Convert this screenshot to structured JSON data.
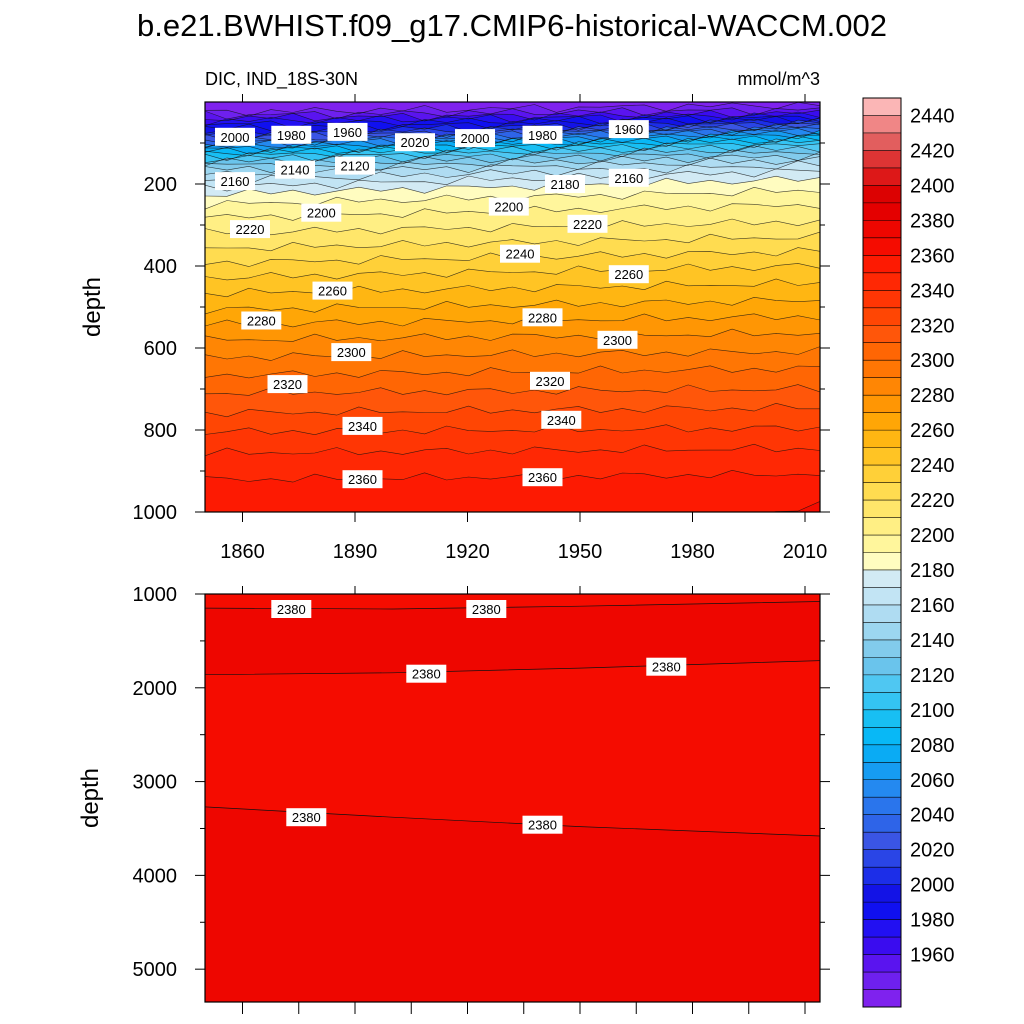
{
  "title": "b.e21.BWHIST.f09_g17.CMIP6-historical-WACCM.002",
  "chart_data": [
    {
      "type": "heatmap",
      "panel": "upper",
      "subtitle_left": "DIC, IND_18S-30N",
      "subtitle_right": "mmol/m^3",
      "ylabel": "depth",
      "xlim": [
        1850,
        2014
      ],
      "ylim": [
        0,
        1000
      ],
      "y_inverted": true,
      "x_ticks": [
        {
          "value": 1860,
          "label": "1860"
        },
        {
          "value": 1890,
          "label": "1890"
        },
        {
          "value": 1920,
          "label": "1920"
        },
        {
          "value": 1950,
          "label": "1950"
        },
        {
          "value": 1980,
          "label": "1980"
        },
        {
          "value": 2010,
          "label": "2010"
        }
      ],
      "y_ticks": [
        {
          "value": 200,
          "label": "200"
        },
        {
          "value": 400,
          "label": "400"
        },
        {
          "value": 600,
          "label": "600"
        },
        {
          "value": 800,
          "label": "800"
        },
        {
          "value": 1000,
          "label": "1000"
        }
      ],
      "profile_start": [
        [
          0,
          1945
        ],
        [
          25,
          1950
        ],
        [
          50,
          1985
        ],
        [
          75,
          2010
        ],
        [
          100,
          2050
        ],
        [
          125,
          2100
        ],
        [
          150,
          2135
        ],
        [
          175,
          2160
        ],
        [
          200,
          2175
        ],
        [
          225,
          2190
        ],
        [
          250,
          2200
        ],
        [
          275,
          2208
        ],
        [
          300,
          2215
        ],
        [
          350,
          2228
        ],
        [
          400,
          2242
        ],
        [
          450,
          2256
        ],
        [
          500,
          2268
        ],
        [
          550,
          2282
        ],
        [
          600,
          2295
        ],
        [
          650,
          2306
        ],
        [
          700,
          2318
        ],
        [
          750,
          2328
        ],
        [
          800,
          2339
        ],
        [
          850,
          2349
        ],
        [
          900,
          2357
        ],
        [
          950,
          2364
        ],
        [
          1000,
          2368
        ]
      ],
      "profile_end": [
        [
          0,
          1945
        ],
        [
          25,
          1965
        ],
        [
          50,
          2020
        ],
        [
          75,
          2075
        ],
        [
          100,
          2115
        ],
        [
          125,
          2145
        ],
        [
          150,
          2168
        ],
        [
          175,
          2185
        ],
        [
          200,
          2195
        ],
        [
          225,
          2203
        ],
        [
          250,
          2210
        ],
        [
          300,
          2222
        ],
        [
          350,
          2236
        ],
        [
          400,
          2250
        ],
        [
          450,
          2262
        ],
        [
          500,
          2274
        ],
        [
          550,
          2287
        ],
        [
          600,
          2298
        ],
        [
          650,
          2310
        ],
        [
          700,
          2320
        ],
        [
          750,
          2331
        ],
        [
          800,
          2341
        ],
        [
          850,
          2351
        ],
        [
          900,
          2359
        ],
        [
          950,
          2366
        ],
        [
          1000,
          2372
        ]
      ],
      "contour_labels": [
        {
          "text": "2000",
          "x": 1858,
          "y": 85
        },
        {
          "text": "1980",
          "x": 1873,
          "y": 80
        },
        {
          "text": "1960",
          "x": 1888,
          "y": 73
        },
        {
          "text": "2020",
          "x": 1906,
          "y": 98
        },
        {
          "text": "2000",
          "x": 1922,
          "y": 88
        },
        {
          "text": "1980",
          "x": 1940,
          "y": 80
        },
        {
          "text": "1960",
          "x": 1963,
          "y": 66
        },
        {
          "text": "2140",
          "x": 1874,
          "y": 165
        },
        {
          "text": "2120",
          "x": 1890,
          "y": 155
        },
        {
          "text": "2160",
          "x": 1858,
          "y": 193
        },
        {
          "text": "2180",
          "x": 1946,
          "y": 200
        },
        {
          "text": "2160",
          "x": 1963,
          "y": 185
        },
        {
          "text": "2200",
          "x": 1881,
          "y": 270
        },
        {
          "text": "2200",
          "x": 1931,
          "y": 255
        },
        {
          "text": "2220",
          "x": 1862,
          "y": 310
        },
        {
          "text": "2220",
          "x": 1952,
          "y": 297
        },
        {
          "text": "2240",
          "x": 1934,
          "y": 370
        },
        {
          "text": "2260",
          "x": 1884,
          "y": 460
        },
        {
          "text": "2260",
          "x": 1963,
          "y": 420
        },
        {
          "text": "2280",
          "x": 1865,
          "y": 533
        },
        {
          "text": "2280",
          "x": 1940,
          "y": 525
        },
        {
          "text": "2300",
          "x": 1889,
          "y": 610
        },
        {
          "text": "2300",
          "x": 1960,
          "y": 580
        },
        {
          "text": "2320",
          "x": 1872,
          "y": 688
        },
        {
          "text": "2320",
          "x": 1942,
          "y": 680
        },
        {
          "text": "2340",
          "x": 1892,
          "y": 790
        },
        {
          "text": "2340",
          "x": 1945,
          "y": 775
        },
        {
          "text": "2360",
          "x": 1892,
          "y": 920
        },
        {
          "text": "2360",
          "x": 1940,
          "y": 915
        }
      ]
    },
    {
      "type": "heatmap",
      "panel": "lower",
      "ylabel": "depth",
      "xlim": [
        1850,
        2014
      ],
      "ylim": [
        1000,
        5350
      ],
      "y_inverted": true,
      "y_ticks": [
        {
          "value": 1000,
          "label": "1000"
        },
        {
          "value": 2000,
          "label": "2000"
        },
        {
          "value": 3000,
          "label": "3000"
        },
        {
          "value": 4000,
          "label": "4000"
        },
        {
          "value": 5000,
          "label": "5000"
        }
      ],
      "contour_lines": [
        {
          "value": 2380,
          "points": [
            [
              1850,
              1150
            ],
            [
              1900,
              1160
            ],
            [
              1950,
              1130
            ],
            [
              2014,
              1080
            ]
          ]
        },
        {
          "value": 2380,
          "points": [
            [
              1850,
              1860
            ],
            [
              1900,
              1840
            ],
            [
              1950,
              1790
            ],
            [
              2014,
              1710
            ]
          ]
        },
        {
          "value": 2380,
          "points": [
            [
              1850,
              3270
            ],
            [
              1900,
              3380
            ],
            [
              1950,
              3480
            ],
            [
              2014,
              3580
            ]
          ]
        }
      ],
      "contour_labels": [
        {
          "text": "2380",
          "x": 1873,
          "y": 1160
        },
        {
          "text": "2380",
          "x": 1925,
          "y": 1160
        },
        {
          "text": "2380",
          "x": 1909,
          "y": 1850
        },
        {
          "text": "2380",
          "x": 1973,
          "y": 1775
        },
        {
          "text": "2380",
          "x": 1877,
          "y": 3380
        },
        {
          "text": "2380",
          "x": 1940,
          "y": 3460
        }
      ],
      "band_regions": [
        {
          "value_low": 2380,
          "value_high": 2390,
          "from_line": 0,
          "to_line": 1
        },
        {
          "value_low": 2380,
          "value_high": 2390,
          "from_line": 2,
          "to_line": "bottom"
        }
      ]
    }
  ],
  "colorbar": {
    "labels": [
      "2440",
      "2420",
      "2400",
      "2380",
      "2360",
      "2340",
      "2320",
      "2300",
      "2280",
      "2260",
      "2240",
      "2220",
      "2200",
      "2180",
      "2160",
      "2140",
      "2120",
      "2100",
      "2080",
      "2060",
      "2040",
      "2020",
      "2000",
      "1980",
      "1960"
    ],
    "levels": [
      1940,
      1950,
      1960,
      1970,
      1980,
      1990,
      2000,
      2010,
      2020,
      2030,
      2040,
      2050,
      2060,
      2070,
      2080,
      2090,
      2100,
      2110,
      2120,
      2130,
      2140,
      2150,
      2160,
      2170,
      2180,
      2190,
      2200,
      2210,
      2220,
      2230,
      2240,
      2250,
      2260,
      2270,
      2280,
      2290,
      2300,
      2310,
      2320,
      2330,
      2340,
      2350,
      2360,
      2370,
      2380,
      2390,
      2400,
      2410,
      2420,
      2430,
      2440,
      2450,
      2460
    ],
    "colors": [
      "#7f22ee",
      "#6e20ee",
      "#5a14ef",
      "#3a0cef",
      "#2210f2",
      "#1010f0",
      "#1313e6",
      "#1c2ee8",
      "#2a45e6",
      "#3a55e4",
      "#2e64e8",
      "#2a75ec",
      "#2489f0",
      "#169cf2",
      "#0aabf4",
      "#08b8f6",
      "#18bff3",
      "#34c4f3",
      "#4fc7f2",
      "#6ac4ec",
      "#82cbec",
      "#9cd6f0",
      "#afdcf2",
      "#c2e4f4",
      "#d2eaf4",
      "#fffcc0",
      "#fff69c",
      "#ffef84",
      "#ffe66a",
      "#ffdc50",
      "#ffd038",
      "#ffc424",
      "#ffb612",
      "#ffa606",
      "#ff9604",
      "#ff8604",
      "#ff7604",
      "#ff6604",
      "#ff560a",
      "#ff4604",
      "#ff3604",
      "#ff2804",
      "#fd1a02",
      "#f50c00",
      "#ee0600",
      "#e40000",
      "#dc0202",
      "#dd1818",
      "#dd3434",
      "#e25e5e",
      "#f08686",
      "#fbb6b6"
    ]
  }
}
